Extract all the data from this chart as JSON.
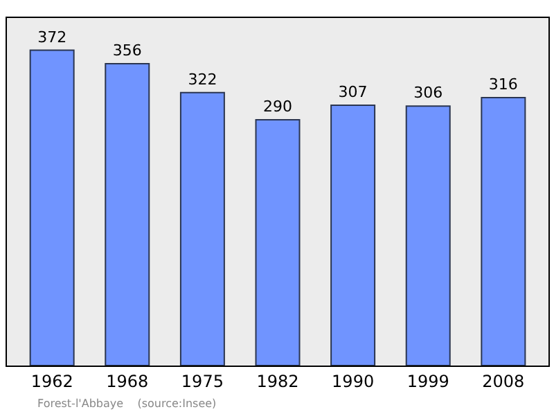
{
  "chart_data": {
    "type": "bar",
    "categories": [
      "1962",
      "1968",
      "1975",
      "1982",
      "1990",
      "1999",
      "2008"
    ],
    "values": [
      372,
      356,
      322,
      290,
      307,
      306,
      316
    ],
    "color": "#7094ff",
    "ylim": [
      0,
      410
    ],
    "data_labels": true,
    "tick_labels": "x",
    "annotations": [
      "Forest-l'Abbaye    (source:Insee)"
    ]
  }
}
